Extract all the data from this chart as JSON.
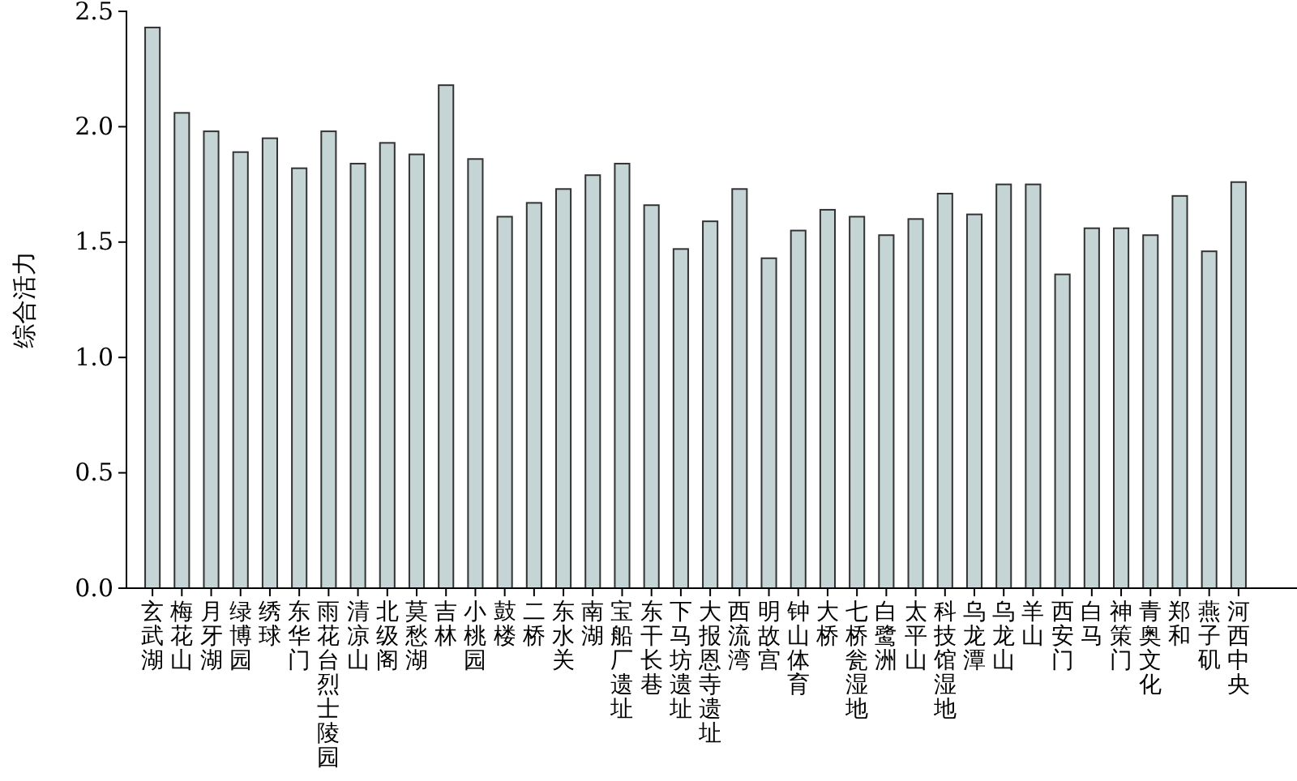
{
  "chart_data": {
    "type": "bar",
    "ylabel": "综合活力",
    "categories": [
      "玄武湖",
      "梅花山",
      "月牙湖",
      "绿博园",
      "绣球",
      "东华门",
      "雨花台烈士陵园",
      "清凉山",
      "北级阁",
      "莫愁湖",
      "吉林",
      "小桃园",
      "鼓楼",
      "二桥",
      "东水关",
      "南湖",
      "宝船厂遗址",
      "东干长巷",
      "下马坊遗址",
      "大报恩寺遗址",
      "西流湾",
      "明故宫",
      "钟山体育",
      "大桥",
      "七桥瓮湿地",
      "白鹭洲",
      "太平山",
      "科技馆湿地",
      "乌龙潭",
      "乌龙山",
      "羊山",
      "西安门",
      "白马",
      "神策门",
      "青奥文化",
      "郑和",
      "燕子矶",
      "河西中央"
    ],
    "values": [
      2.43,
      2.06,
      1.98,
      1.89,
      1.95,
      1.82,
      1.98,
      1.84,
      1.93,
      1.88,
      2.18,
      1.86,
      1.61,
      1.67,
      1.73,
      1.79,
      1.84,
      1.66,
      1.47,
      1.59,
      1.73,
      1.43,
      1.55,
      1.64,
      1.61,
      1.53,
      1.6,
      1.71,
      1.62,
      1.75,
      1.75,
      1.36,
      1.56,
      1.56,
      1.53,
      1.7,
      1.46,
      1.76
    ],
    "color": "#c5d4d4",
    "ylim": [
      0,
      2.5
    ],
    "yticks": [
      {
        "value": 0,
        "label": "0.0"
      },
      {
        "value": 0.5,
        "label": "0.5"
      },
      {
        "value": 1,
        "label": "1.0"
      },
      {
        "value": 1.5,
        "label": "1.5"
      },
      {
        "value": 2,
        "label": "2.0"
      },
      {
        "value": 2.5,
        "label": "2.5"
      }
    ],
    "grid": false
  }
}
